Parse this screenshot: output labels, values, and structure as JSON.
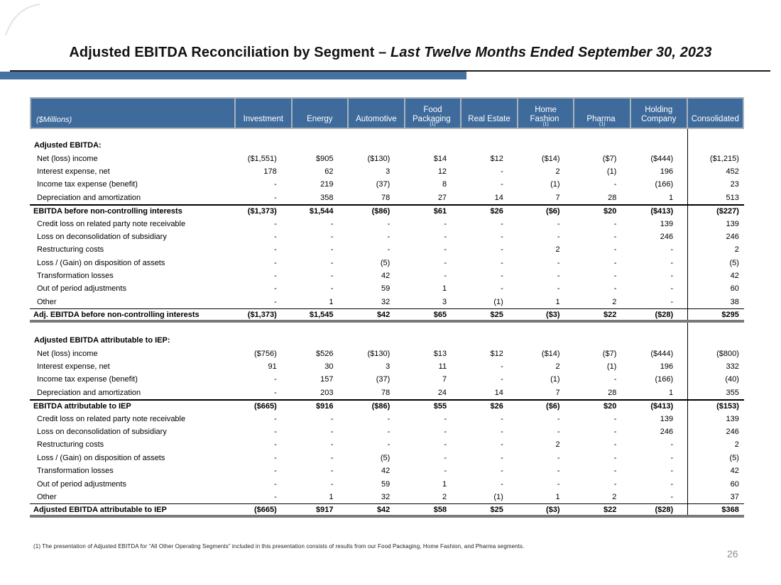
{
  "title": {
    "regular": "Adjusted EBITDA Reconciliation by Segment – ",
    "italic": "Last Twelve Months Ended September 30, 2023"
  },
  "page_number": "26",
  "footnote": "(1) The presentation of Adjusted EBITDA for “All Other Operating Segments” included in this presentation consists of results from our Food Packaging, Home Fashion, and Pharma segments.",
  "colors": {
    "header_blue": "#3e6b9b",
    "accent_bar_blue": "#44719f",
    "total_rule_grey": "#7a7a7a",
    "page_number_grey": "#8c8c8c"
  },
  "table": {
    "unit_label": "($Millions)",
    "columns": [
      {
        "key": "investment",
        "lines": [
          "Investment"
        ]
      },
      {
        "key": "energy",
        "lines": [
          "Energy"
        ]
      },
      {
        "key": "automotive",
        "lines": [
          "Automotive"
        ]
      },
      {
        "key": "food-packaging",
        "lines": [
          "Food",
          "Packaging"
        ],
        "sup": "(1)"
      },
      {
        "key": "real-estate",
        "lines": [
          "Real Estate"
        ]
      },
      {
        "key": "home-fashion",
        "lines": [
          "Home",
          "Fashion"
        ],
        "sup": "(1)"
      },
      {
        "key": "pharma",
        "lines": [
          "Pharma"
        ],
        "sup": "(1)"
      },
      {
        "key": "holding-company",
        "lines": [
          "Holding",
          "Company"
        ]
      },
      {
        "key": "consolidated",
        "lines": [
          "Consolidated"
        ]
      }
    ],
    "sections": [
      {
        "rows": [
          {
            "label": "Adjusted EBITDA:",
            "style": "section",
            "values": []
          },
          {
            "label": "Net (loss) income",
            "style": "item",
            "values": [
              "($1,551)",
              "$905",
              "($130)",
              "$14",
              "$12",
              "($14)",
              "($7)",
              "($444)",
              "($1,215)"
            ]
          },
          {
            "label": "Interest expense, net",
            "style": "item",
            "values": [
              "178",
              "62",
              "3",
              "12",
              "-",
              "2",
              "(1)",
              "196",
              "452"
            ]
          },
          {
            "label": "Income tax expense (benefit)",
            "style": "item",
            "values": [
              "-",
              "219",
              "(37)",
              "8",
              "-",
              "(1)",
              "-",
              "(166)",
              "23"
            ]
          },
          {
            "label": "Depreciation and amortization",
            "style": "item",
            "values": [
              "-",
              "358",
              "78",
              "27",
              "14",
              "7",
              "28",
              "1",
              "513"
            ]
          },
          {
            "label": "EBITDA before non-controlling interests",
            "style": "subtotal",
            "values": [
              "($1,373)",
              "$1,544",
              "($86)",
              "$61",
              "$26",
              "($6)",
              "$20",
              "($413)",
              "($227)"
            ]
          },
          {
            "label": "Credit loss on related party note receivable",
            "style": "item",
            "values": [
              "-",
              "-",
              "-",
              "-",
              "-",
              "-",
              "-",
              "139",
              "139"
            ]
          },
          {
            "label": "Loss on deconsolidation of subsidiary",
            "style": "item",
            "values": [
              "-",
              "-",
              "-",
              "-",
              "-",
              "-",
              "-",
              "246",
              "246"
            ]
          },
          {
            "label": "Restructuring costs",
            "style": "item",
            "values": [
              "-",
              "-",
              "-",
              "-",
              "-",
              "2",
              "-",
              "-",
              "2"
            ]
          },
          {
            "label": "Loss / (Gain) on disposition of assets",
            "style": "item",
            "values": [
              "-",
              "-",
              "(5)",
              "-",
              "-",
              "-",
              "-",
              "-",
              "(5)"
            ]
          },
          {
            "label": "Transformation losses",
            "style": "item",
            "values": [
              "-",
              "-",
              "42",
              "-",
              "-",
              "-",
              "-",
              "-",
              "42"
            ]
          },
          {
            "label": "Out of period adjustments",
            "style": "item",
            "values": [
              "-",
              "-",
              "59",
              "1",
              "-",
              "-",
              "-",
              "-",
              "60"
            ]
          },
          {
            "label": "Other",
            "style": "item",
            "values": [
              "-",
              "1",
              "32",
              "3",
              "(1)",
              "1",
              "2",
              "-",
              "38"
            ]
          },
          {
            "label": "Adj. EBITDA before non-controlling interests",
            "style": "total",
            "values": [
              "($1,373)",
              "$1,545",
              "$42",
              "$65",
              "$25",
              "($3)",
              "$22",
              "($28)",
              "$295"
            ]
          }
        ]
      },
      {
        "rows": [
          {
            "label": "Adjusted EBITDA attributable to IEP:",
            "style": "section",
            "values": []
          },
          {
            "label": "Net (loss) income",
            "style": "item",
            "values": [
              "($756)",
              "$526",
              "($130)",
              "$13",
              "$12",
              "($14)",
              "($7)",
              "($444)",
              "($800)"
            ]
          },
          {
            "label": "Interest expense, net",
            "style": "item",
            "values": [
              "91",
              "30",
              "3",
              "11",
              "-",
              "2",
              "(1)",
              "196",
              "332"
            ]
          },
          {
            "label": "Income tax expense (benefit)",
            "style": "item",
            "values": [
              "-",
              "157",
              "(37)",
              "7",
              "-",
              "(1)",
              "-",
              "(166)",
              "(40)"
            ]
          },
          {
            "label": "Depreciation and amortization",
            "style": "item",
            "values": [
              "-",
              "203",
              "78",
              "24",
              "14",
              "7",
              "28",
              "1",
              "355"
            ]
          },
          {
            "label": "EBITDA attributable to IEP",
            "style": "subtotal",
            "values": [
              "($665)",
              "$916",
              "($86)",
              "$55",
              "$26",
              "($6)",
              "$20",
              "($413)",
              "($153)"
            ]
          },
          {
            "label": "Credit loss on related party note receivable",
            "style": "item",
            "values": [
              "-",
              "-",
              "-",
              "-",
              "-",
              "-",
              "-",
              "139",
              "139"
            ]
          },
          {
            "label": "Loss on deconsolidation of subsidiary",
            "style": "item",
            "values": [
              "-",
              "-",
              "-",
              "-",
              "-",
              "-",
              "-",
              "246",
              "246"
            ]
          },
          {
            "label": "Restructuring costs",
            "style": "item",
            "values": [
              "-",
              "-",
              "-",
              "-",
              "-",
              "2",
              "-",
              "-",
              "2"
            ]
          },
          {
            "label": "Loss / (Gain) on disposition of assets",
            "style": "item",
            "values": [
              "-",
              "-",
              "(5)",
              "-",
              "-",
              "-",
              "-",
              "-",
              "(5)"
            ]
          },
          {
            "label": "Transformation losses",
            "style": "item",
            "values": [
              "-",
              "-",
              "42",
              "-",
              "-",
              "-",
              "-",
              "-",
              "42"
            ]
          },
          {
            "label": "Out of period adjustments",
            "style": "item",
            "values": [
              "-",
              "-",
              "59",
              "1",
              "-",
              "-",
              "-",
              "-",
              "60"
            ]
          },
          {
            "label": "Other",
            "style": "item",
            "values": [
              "-",
              "1",
              "32",
              "2",
              "(1)",
              "1",
              "2",
              "-",
              "37"
            ]
          },
          {
            "label": "Adjusted EBITDA attributable to IEP",
            "style": "total",
            "values": [
              "($665)",
              "$917",
              "$42",
              "$58",
              "$25",
              "($3)",
              "$22",
              "($28)",
              "$368"
            ]
          }
        ]
      }
    ]
  }
}
